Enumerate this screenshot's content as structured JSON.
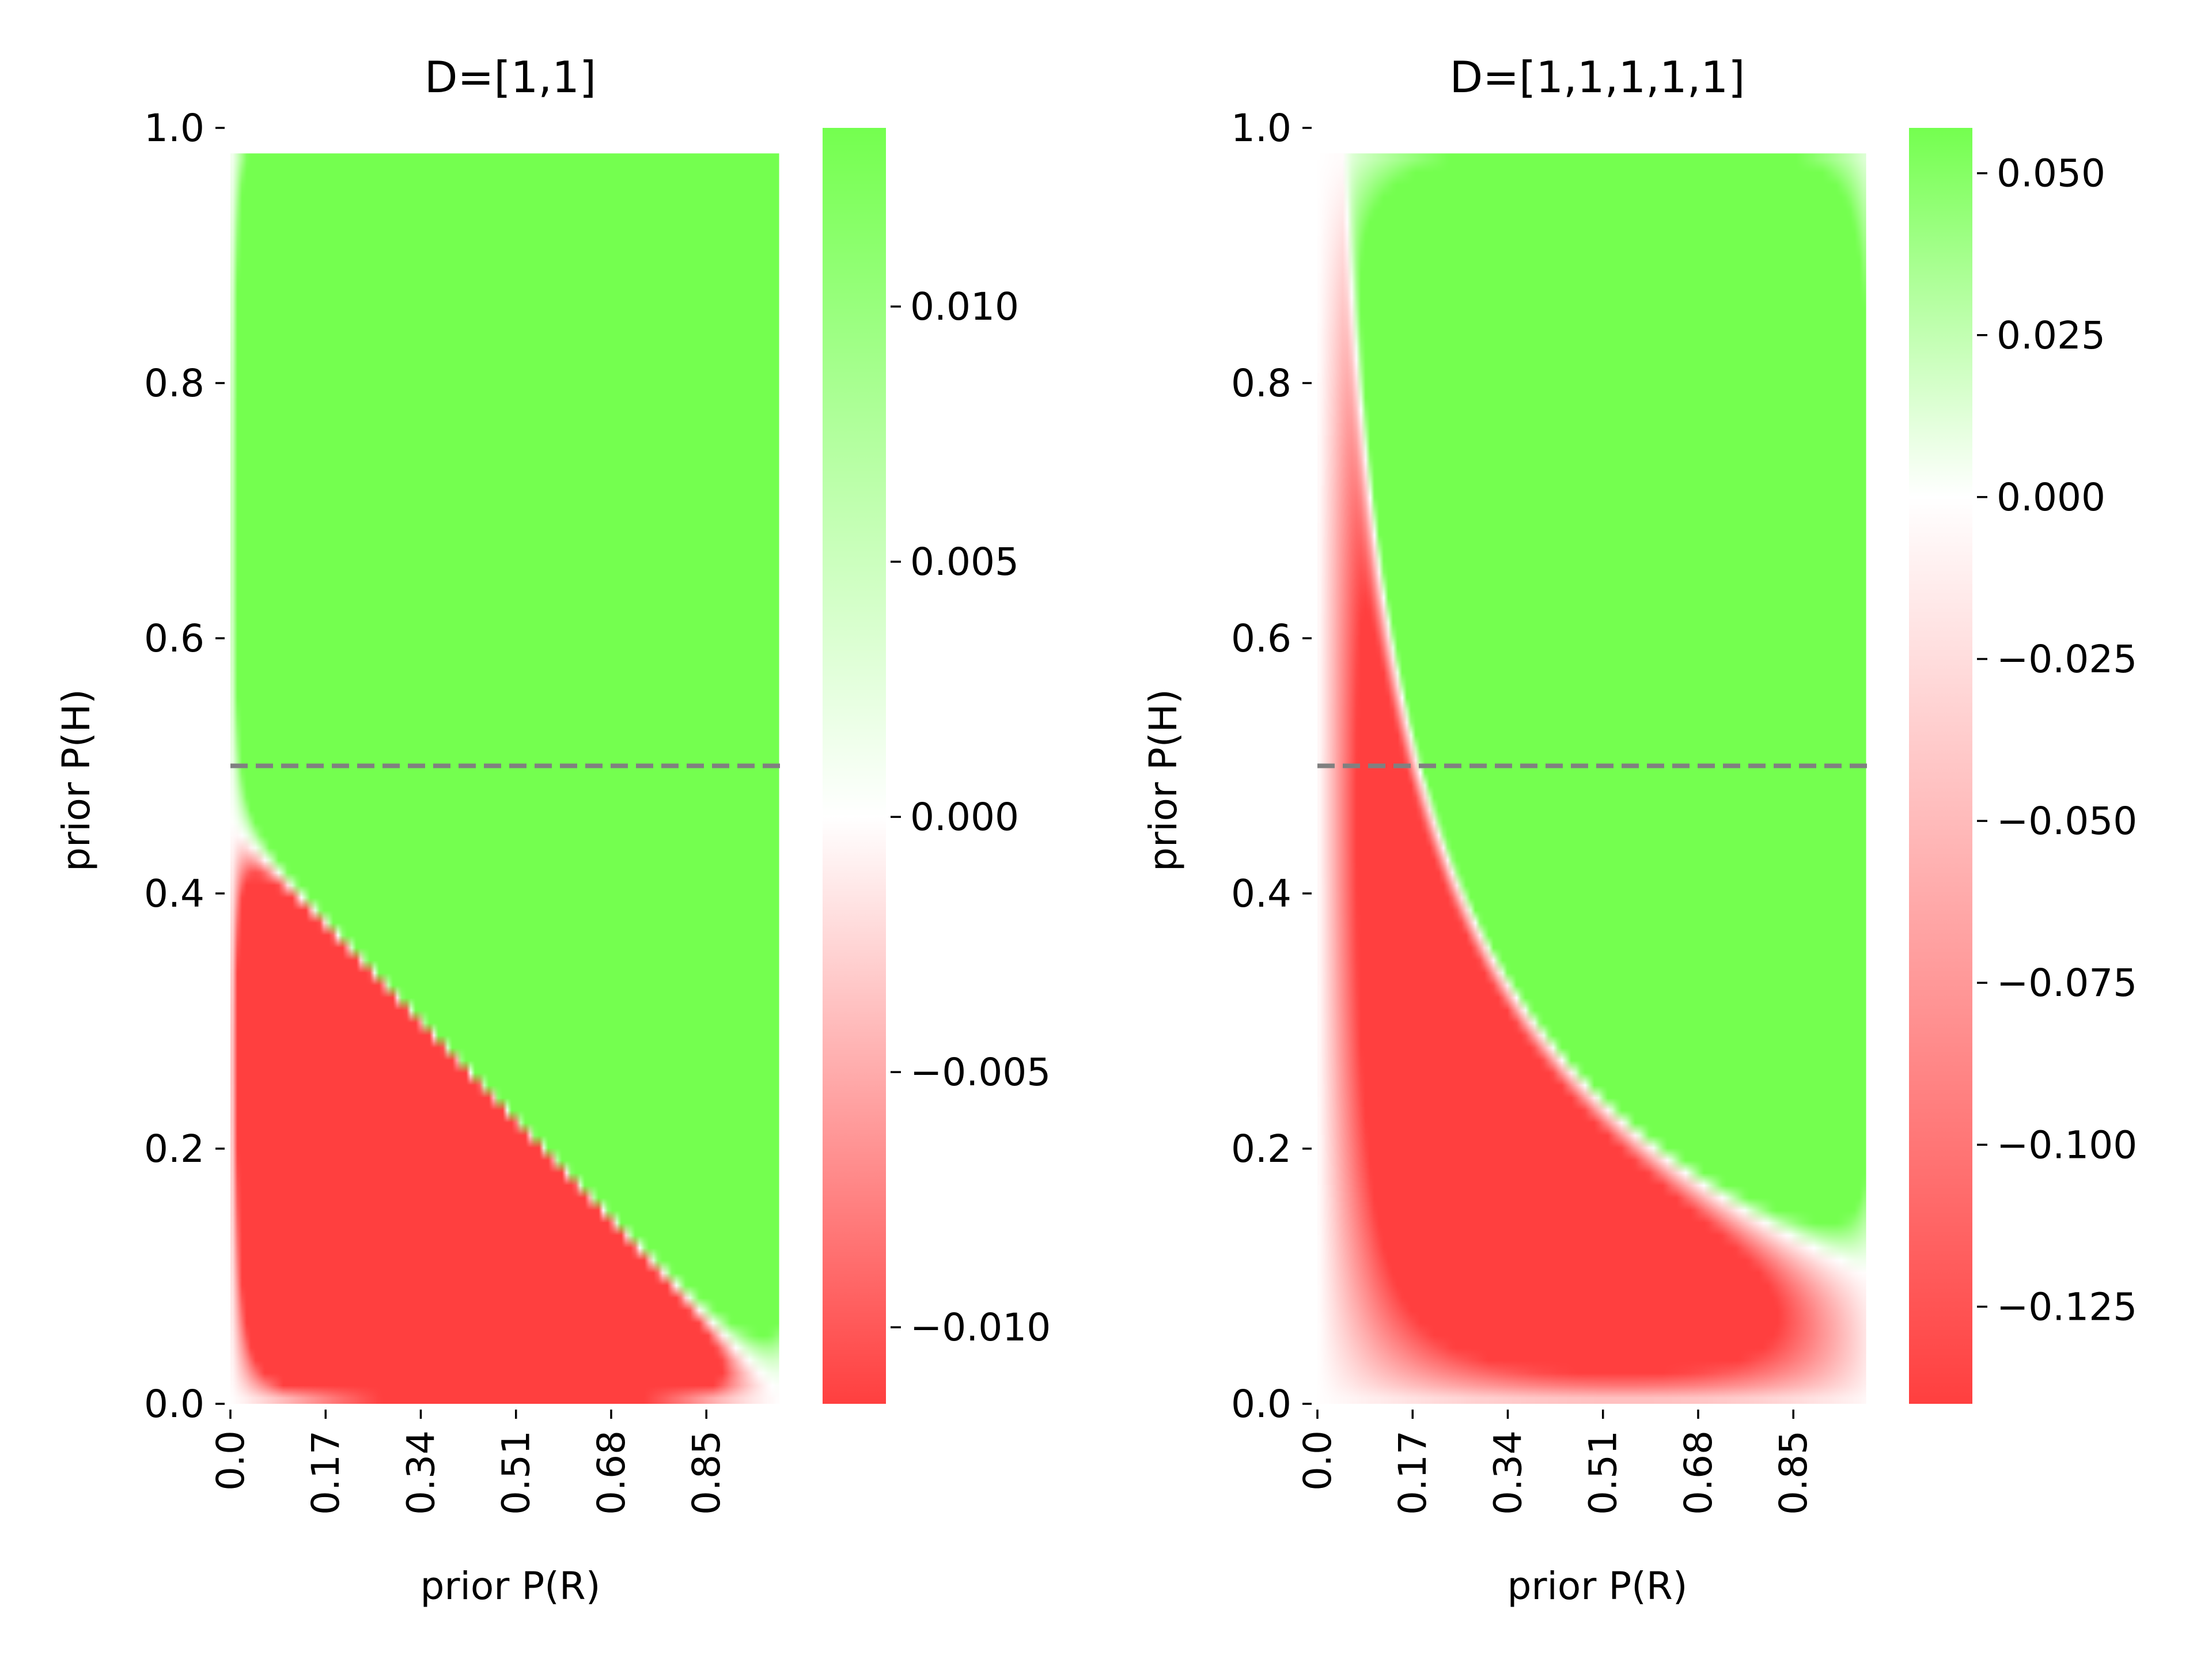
{
  "colors": {
    "negative": "#ff3f3f",
    "neutral": "#ffffff",
    "positive": "#74ff4f",
    "reference_line": "#808080"
  },
  "chart_data": [
    {
      "type": "heatmap",
      "title": "D=[1,1]",
      "xlabel": "prior P(R)",
      "ylabel": "prior P(H)",
      "xlim": [
        0,
        1
      ],
      "ylim": [
        0,
        1
      ],
      "x_ticks": [
        0.0,
        0.17,
        0.34,
        0.51,
        0.68,
        0.85
      ],
      "x_tick_labels": [
        "0.0",
        "0.17",
        "0.34",
        "0.51",
        "0.68",
        "0.85"
      ],
      "y_ticks": [
        0.0,
        0.2,
        0.4,
        0.6,
        0.8,
        1.0
      ],
      "y_tick_labels": [
        "0.0",
        "0.2",
        "0.4",
        "0.6",
        "0.8",
        "1.0"
      ],
      "reference_line": {
        "y": 0.5,
        "style": "dashed"
      },
      "grid": false,
      "colorbar": {
        "range": [
          -0.0115,
          0.0135
        ],
        "ticks": [
          -0.01,
          -0.005,
          0.0,
          0.005,
          0.01
        ],
        "tick_labels": [
          "−0.010",
          "−0.005",
          "0.000",
          "0.005",
          "0.010"
        ],
        "colors": [
          "#ff3f3f",
          "#ffffff",
          "#74ff4f"
        ]
      },
      "observations": 2,
      "value_extrema": {
        "min": -0.0115,
        "max": 0.0135
      }
    },
    {
      "type": "heatmap",
      "title": "D=[1,1,1,1,1]",
      "xlabel": "prior P(R)",
      "ylabel": "prior P(H)",
      "xlim": [
        0,
        1
      ],
      "ylim": [
        0,
        1
      ],
      "x_ticks": [
        0.0,
        0.17,
        0.34,
        0.51,
        0.68,
        0.85
      ],
      "x_tick_labels": [
        "0.0",
        "0.17",
        "0.34",
        "0.51",
        "0.68",
        "0.85"
      ],
      "y_ticks": [
        0.0,
        0.2,
        0.4,
        0.6,
        0.8,
        1.0
      ],
      "y_tick_labels": [
        "0.0",
        "0.2",
        "0.4",
        "0.6",
        "0.8",
        "1.0"
      ],
      "reference_line": {
        "y": 0.5,
        "style": "dashed"
      },
      "grid": false,
      "colorbar": {
        "range": [
          -0.14,
          0.057
        ],
        "ticks": [
          -0.125,
          -0.1,
          -0.075,
          -0.05,
          -0.025,
          0.0,
          0.025,
          0.05
        ],
        "tick_labels": [
          "−0.125",
          "−0.100",
          "−0.075",
          "−0.050",
          "−0.025",
          "0.000",
          "0.025",
          "0.050"
        ],
        "colors": [
          "#ff3f3f",
          "#ffffff",
          "#74ff4f"
        ]
      },
      "observations": 5,
      "value_extrema": {
        "min": -0.14,
        "max": 0.057
      }
    }
  ]
}
